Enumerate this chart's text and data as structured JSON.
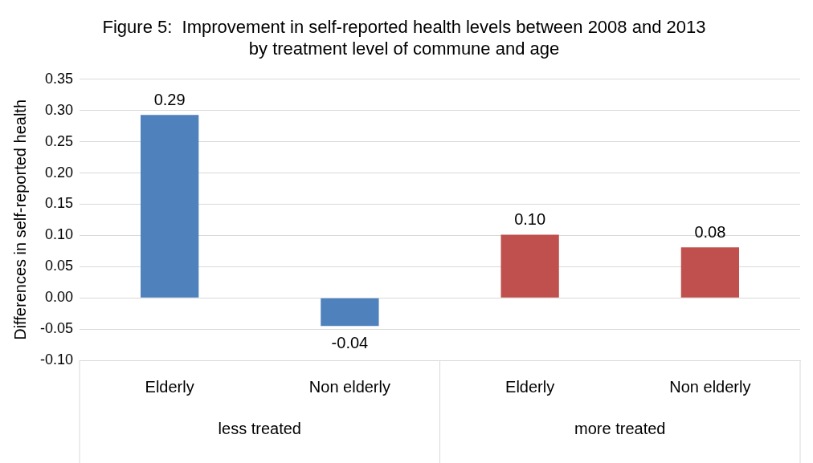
{
  "chart_data": {
    "type": "bar",
    "title": "Figure 5:  Improvement in self-reported health levels between 2008 and 2013 by treatment level of commune and age",
    "ylabel": "Differences in self-reported health",
    "categories": [
      "Elderly",
      "Non elderly",
      "Elderly",
      "Non elderly"
    ],
    "values": [
      0.293,
      -0.045,
      0.101,
      0.081
    ],
    "value_labels": [
      "0.29",
      "-0.04",
      "0.10",
      "0.08"
    ],
    "colors": [
      "#4f81bd",
      "#4f81bd",
      "#c0504d",
      "#c0504d"
    ],
    "annotations": [
      "less treated",
      "more treated"
    ],
    "ylim": [
      -0.1,
      0.35
    ],
    "yticks": [
      {
        "value": -0.1,
        "label": "-0.10"
      },
      {
        "value": -0.05,
        "label": "-0.05"
      },
      {
        "value": 0,
        "label": "0.00"
      },
      {
        "value": 0.05,
        "label": "0.05"
      },
      {
        "value": 0.1,
        "label": "0.10"
      },
      {
        "value": 0.15,
        "label": "0.15"
      },
      {
        "value": 0.2,
        "label": "0.20"
      },
      {
        "value": 0.25,
        "label": "0.25"
      },
      {
        "value": 0.3,
        "label": "0.30"
      },
      {
        "value": 0.35,
        "label": "0.35"
      }
    ],
    "grid": "y"
  }
}
